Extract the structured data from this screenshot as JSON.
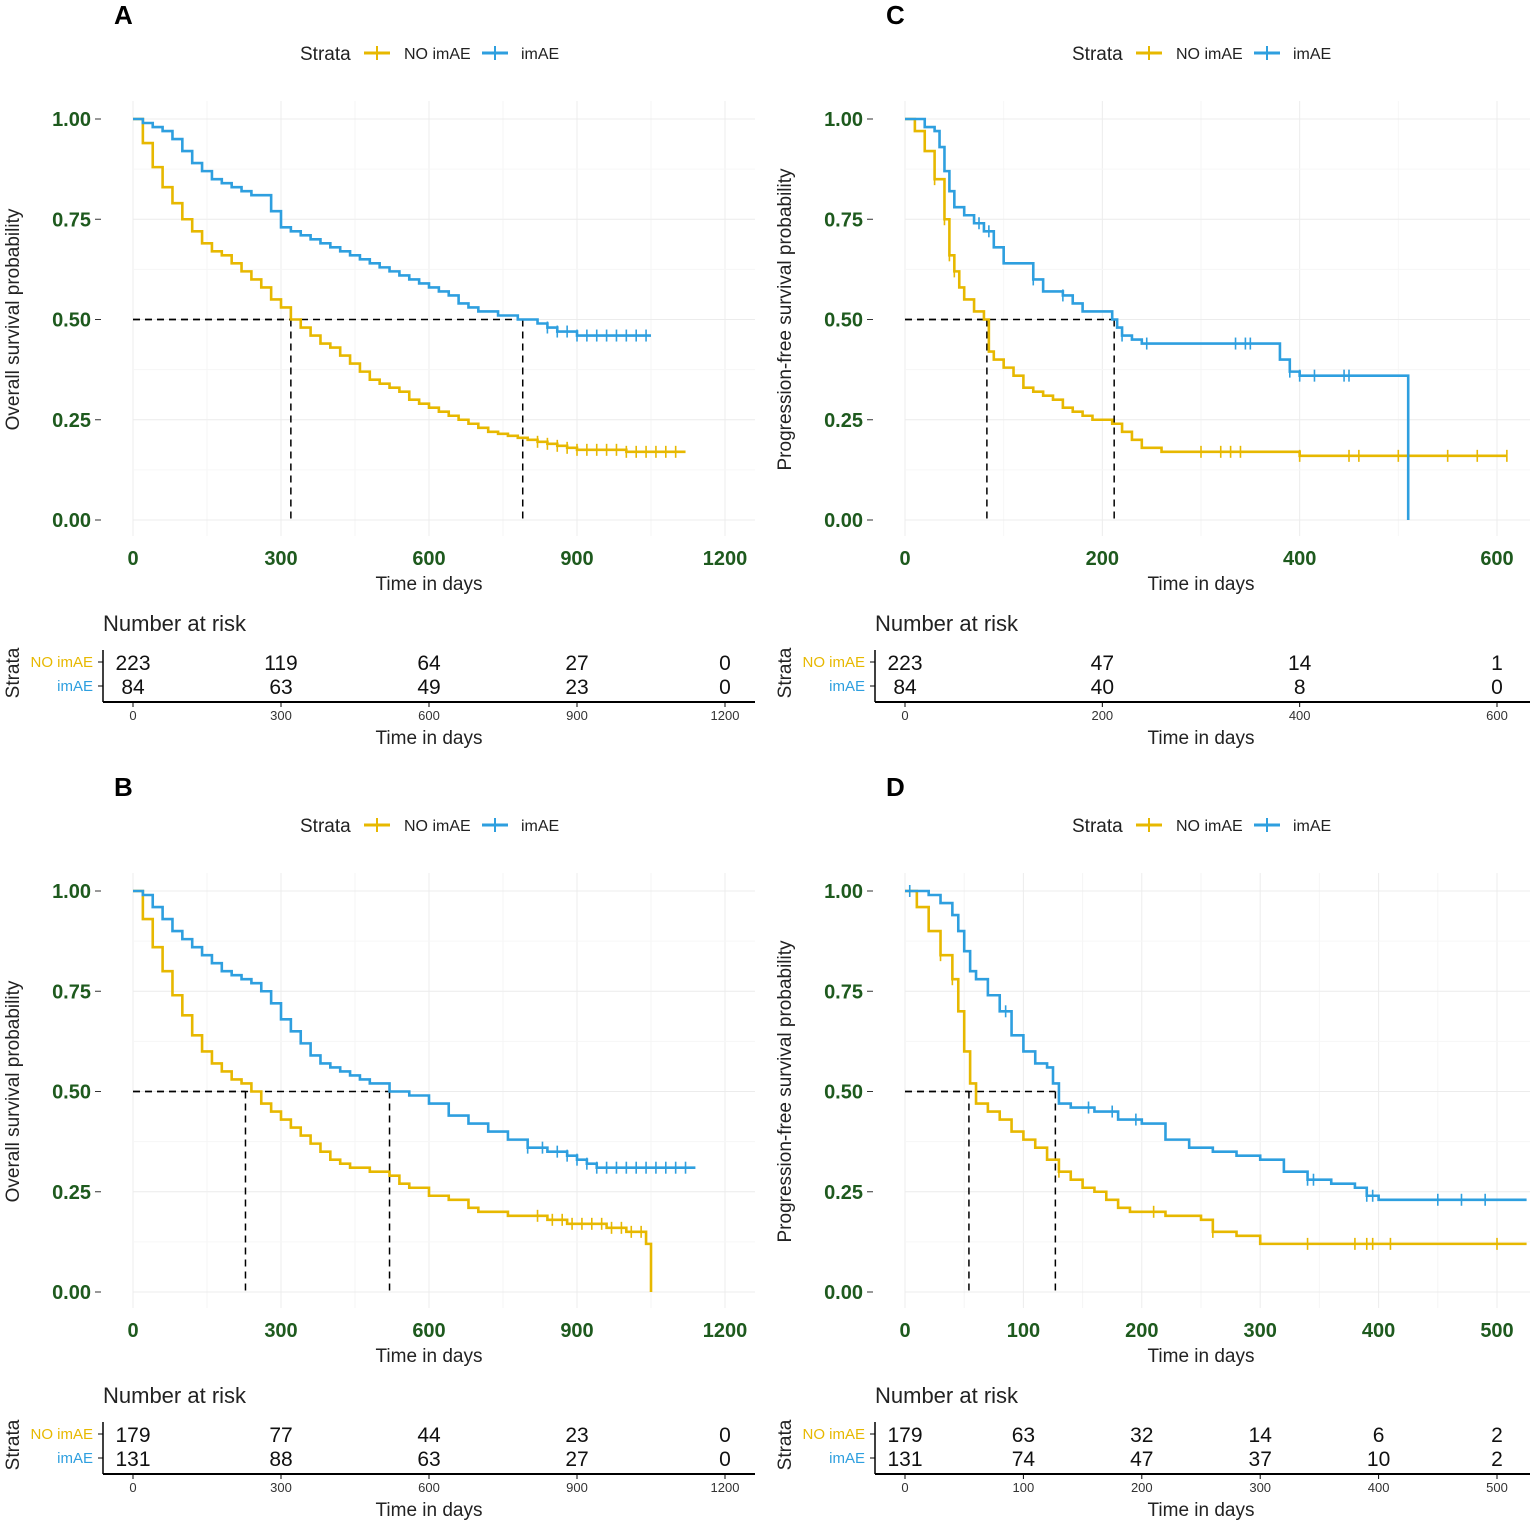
{
  "chart_data": [
    {
      "panel": "A",
      "type": "line",
      "subtype": "kaplan-meier",
      "legend": {
        "title": "Strata",
        "entries": [
          "NO imAE",
          "imAE"
        ]
      },
      "ylabel": "Overall survival probability",
      "xlabel": "Time in days",
      "xlim": [
        0,
        1200
      ],
      "ylim": [
        0,
        1
      ],
      "xticks": [
        "0",
        "300",
        "600",
        "900",
        "1200"
      ],
      "yticks": [
        "0.00",
        "0.25",
        "0.50",
        "0.75",
        "1.00"
      ],
      "median_survival": [
        320,
        790
      ],
      "series": [
        {
          "name": "NO imAE",
          "color": "#E7B800",
          "x": [
            0,
            20,
            40,
            60,
            80,
            100,
            120,
            140,
            160,
            180,
            200,
            220,
            240,
            260,
            280,
            300,
            320,
            340,
            360,
            380,
            400,
            420,
            440,
            460,
            480,
            500,
            520,
            540,
            560,
            580,
            600,
            620,
            640,
            660,
            680,
            700,
            720,
            740,
            760,
            780,
            800,
            820,
            840,
            860,
            880,
            900,
            1000,
            1120
          ],
          "y": [
            1.0,
            0.94,
            0.88,
            0.83,
            0.79,
            0.75,
            0.72,
            0.69,
            0.67,
            0.66,
            0.64,
            0.62,
            0.6,
            0.58,
            0.55,
            0.53,
            0.5,
            0.48,
            0.46,
            0.44,
            0.43,
            0.41,
            0.39,
            0.37,
            0.35,
            0.34,
            0.33,
            0.32,
            0.3,
            0.29,
            0.28,
            0.27,
            0.26,
            0.25,
            0.24,
            0.23,
            0.22,
            0.215,
            0.21,
            0.205,
            0.2,
            0.195,
            0.19,
            0.185,
            0.18,
            0.175,
            0.17,
            0.17
          ],
          "censor_x": [
            820,
            840,
            860,
            880,
            900,
            920,
            940,
            960,
            980,
            1000,
            1020,
            1040,
            1060,
            1080,
            1100
          ]
        },
        {
          "name": "imAE",
          "color": "#2E9FDF",
          "x": [
            0,
            20,
            40,
            60,
            80,
            100,
            120,
            140,
            160,
            180,
            200,
            220,
            240,
            260,
            280,
            300,
            320,
            340,
            360,
            380,
            400,
            420,
            440,
            460,
            480,
            500,
            520,
            540,
            560,
            580,
            600,
            620,
            640,
            660,
            680,
            700,
            720,
            740,
            760,
            780,
            800,
            820,
            840,
            860,
            900,
            1000,
            1050
          ],
          "y": [
            1.0,
            0.99,
            0.98,
            0.97,
            0.95,
            0.92,
            0.89,
            0.87,
            0.85,
            0.84,
            0.83,
            0.82,
            0.81,
            0.81,
            0.77,
            0.73,
            0.72,
            0.71,
            0.7,
            0.69,
            0.68,
            0.67,
            0.66,
            0.65,
            0.64,
            0.63,
            0.62,
            0.61,
            0.6,
            0.59,
            0.58,
            0.57,
            0.56,
            0.54,
            0.53,
            0.52,
            0.52,
            0.51,
            0.51,
            0.5,
            0.5,
            0.49,
            0.48,
            0.47,
            0.46,
            0.46,
            0.46
          ],
          "censor_x": [
            840,
            860,
            880,
            900,
            920,
            940,
            960,
            980,
            1000,
            1020,
            1040
          ]
        }
      ],
      "risk_table": {
        "title": "Number at risk",
        "strata_label": "Strata",
        "times": [
          "0",
          "300",
          "600",
          "900",
          "1200"
        ],
        "rows": [
          {
            "name": "NO imAE",
            "color": "#E7B800",
            "values": [
              "223",
              "119",
              "64",
              "27",
              "0"
            ]
          },
          {
            "name": "imAE",
            "color": "#2E9FDF",
            "values": [
              "84",
              "63",
              "49",
              "23",
              "0"
            ]
          }
        ]
      }
    },
    {
      "panel": "B",
      "type": "line",
      "subtype": "kaplan-meier",
      "legend": {
        "title": "Strata",
        "entries": [
          "NO imAE",
          "imAE"
        ]
      },
      "ylabel": "Overall survival probability",
      "xlabel": "Time in days",
      "xlim": [
        0,
        1200
      ],
      "ylim": [
        0,
        1
      ],
      "xticks": [
        "0",
        "300",
        "600",
        "900",
        "1200"
      ],
      "yticks": [
        "0.00",
        "0.25",
        "0.50",
        "0.75",
        "1.00"
      ],
      "median_survival": [
        228,
        520
      ],
      "series": [
        {
          "name": "NO imAE",
          "color": "#E7B800",
          "x": [
            0,
            20,
            40,
            60,
            80,
            100,
            120,
            140,
            160,
            180,
            200,
            220,
            240,
            260,
            280,
            300,
            320,
            340,
            360,
            380,
            400,
            420,
            440,
            460,
            480,
            500,
            520,
            540,
            560,
            600,
            640,
            680,
            700,
            760,
            800,
            840,
            880,
            920,
            960,
            980,
            1000,
            1040,
            1050,
            1050
          ],
          "y": [
            1.0,
            0.93,
            0.86,
            0.8,
            0.74,
            0.69,
            0.64,
            0.6,
            0.57,
            0.55,
            0.53,
            0.52,
            0.5,
            0.47,
            0.45,
            0.43,
            0.41,
            0.39,
            0.37,
            0.35,
            0.33,
            0.32,
            0.31,
            0.31,
            0.3,
            0.3,
            0.29,
            0.27,
            0.26,
            0.24,
            0.23,
            0.21,
            0.2,
            0.19,
            0.19,
            0.18,
            0.17,
            0.17,
            0.16,
            0.16,
            0.15,
            0.12,
            0.12,
            0.0
          ],
          "censor_x": [
            820,
            850,
            870,
            890,
            910,
            930,
            950,
            970,
            990,
            1010,
            1030
          ]
        },
        {
          "name": "imAE",
          "color": "#2E9FDF",
          "x": [
            0,
            20,
            40,
            60,
            80,
            100,
            120,
            140,
            160,
            180,
            200,
            220,
            240,
            260,
            280,
            300,
            320,
            340,
            360,
            380,
            400,
            420,
            440,
            460,
            480,
            500,
            520,
            560,
            600,
            640,
            680,
            720,
            760,
            800,
            840,
            880,
            900,
            920,
            940,
            980,
            1020,
            1060,
            1140
          ],
          "y": [
            1.0,
            0.99,
            0.96,
            0.93,
            0.9,
            0.88,
            0.86,
            0.84,
            0.82,
            0.8,
            0.79,
            0.78,
            0.77,
            0.75,
            0.72,
            0.68,
            0.65,
            0.62,
            0.59,
            0.57,
            0.56,
            0.55,
            0.54,
            0.53,
            0.52,
            0.52,
            0.5,
            0.49,
            0.47,
            0.44,
            0.42,
            0.4,
            0.38,
            0.36,
            0.35,
            0.34,
            0.33,
            0.32,
            0.31,
            0.31,
            0.31,
            0.31,
            0.31
          ],
          "censor_x": [
            800,
            830,
            860,
            880,
            900,
            920,
            940,
            960,
            980,
            1000,
            1020,
            1040,
            1060,
            1080,
            1100,
            1120
          ]
        }
      ],
      "risk_table": {
        "title": "Number at risk",
        "strata_label": "Strata",
        "times": [
          "0",
          "300",
          "600",
          "900",
          "1200"
        ],
        "rows": [
          {
            "name": "NO imAE",
            "color": "#E7B800",
            "values": [
              "179",
              "77",
              "44",
              "23",
              "0"
            ]
          },
          {
            "name": "imAE",
            "color": "#2E9FDF",
            "values": [
              "131",
              "88",
              "63",
              "27",
              "0"
            ]
          }
        ]
      }
    },
    {
      "panel": "C",
      "type": "line",
      "subtype": "kaplan-meier",
      "legend": {
        "title": "Strata",
        "entries": [
          "NO imAE",
          "imAE"
        ]
      },
      "ylabel": "Progression-free survival probability",
      "xlabel": "Time in days",
      "xlim": [
        0,
        630
      ],
      "ylim": [
        0,
        1
      ],
      "xticks": [
        "0",
        "200",
        "400",
        "600"
      ],
      "yticks": [
        "0.00",
        "0.25",
        "0.50",
        "0.75",
        "1.00"
      ],
      "median_survival": [
        83,
        212
      ],
      "series": [
        {
          "name": "NO imAE",
          "color": "#E7B800",
          "x": [
            0,
            10,
            20,
            30,
            40,
            45,
            50,
            55,
            60,
            70,
            80,
            85,
            90,
            100,
            110,
            120,
            130,
            140,
            150,
            160,
            170,
            180,
            190,
            200,
            210,
            220,
            230,
            240,
            260,
            300,
            400,
            500,
            610
          ],
          "y": [
            1.0,
            0.97,
            0.92,
            0.85,
            0.75,
            0.66,
            0.62,
            0.58,
            0.55,
            0.52,
            0.5,
            0.42,
            0.4,
            0.38,
            0.36,
            0.33,
            0.32,
            0.31,
            0.3,
            0.28,
            0.27,
            0.26,
            0.25,
            0.25,
            0.24,
            0.22,
            0.2,
            0.18,
            0.17,
            0.17,
            0.16,
            0.16,
            0.16
          ],
          "censor_x": [
            30,
            40,
            45,
            50,
            300,
            320,
            330,
            340,
            400,
            450,
            460,
            500,
            550,
            580,
            610
          ]
        },
        {
          "name": "imAE",
          "color": "#2E9FDF",
          "x": [
            0,
            20,
            30,
            35,
            40,
            45,
            50,
            60,
            70,
            80,
            90,
            100,
            120,
            130,
            140,
            160,
            170,
            180,
            200,
            210,
            215,
            220,
            230,
            240,
            260,
            300,
            380,
            390,
            400,
            420,
            480,
            510,
            510
          ],
          "y": [
            1.0,
            0.98,
            0.97,
            0.93,
            0.87,
            0.82,
            0.78,
            0.76,
            0.74,
            0.72,
            0.68,
            0.64,
            0.64,
            0.6,
            0.57,
            0.56,
            0.54,
            0.52,
            0.52,
            0.5,
            0.48,
            0.46,
            0.45,
            0.44,
            0.44,
            0.44,
            0.4,
            0.37,
            0.36,
            0.36,
            0.36,
            0.36,
            0.0
          ],
          "censor_x": [
            75,
            85,
            130,
            160,
            220,
            245,
            335,
            345,
            350,
            390,
            400,
            415,
            445,
            450
          ]
        }
      ],
      "risk_table": {
        "title": "Number at risk",
        "strata_label": "Strata",
        "times": [
          "0",
          "200",
          "400",
          "600"
        ],
        "rows": [
          {
            "name": "NO imAE",
            "color": "#E7B800",
            "values": [
              "223",
              "47",
              "14",
              "1"
            ]
          },
          {
            "name": "imAE",
            "color": "#2E9FDF",
            "values": [
              "84",
              "40",
              "8",
              "0"
            ]
          }
        ]
      }
    },
    {
      "panel": "D",
      "type": "line",
      "subtype": "kaplan-meier",
      "legend": {
        "title": "Strata",
        "entries": [
          "NO imAE",
          "imAE"
        ]
      },
      "ylabel": "Progression-free survival probability",
      "xlabel": "Time in days",
      "xlim": [
        0,
        525
      ],
      "ylim": [
        0,
        1
      ],
      "xticks": [
        "0",
        "100",
        "200",
        "300",
        "400",
        "500"
      ],
      "yticks": [
        "0.00",
        "0.25",
        "0.50",
        "0.75",
        "1.00"
      ],
      "median_survival": [
        54,
        127
      ],
      "series": [
        {
          "name": "NO imAE",
          "color": "#E7B800",
          "x": [
            0,
            10,
            20,
            30,
            40,
            45,
            50,
            55,
            60,
            70,
            80,
            90,
            100,
            110,
            120,
            130,
            140,
            150,
            160,
            170,
            180,
            190,
            200,
            220,
            240,
            250,
            260,
            280,
            300,
            350,
            400,
            450,
            525
          ],
          "y": [
            1.0,
            0.96,
            0.9,
            0.84,
            0.78,
            0.7,
            0.6,
            0.52,
            0.47,
            0.45,
            0.43,
            0.4,
            0.38,
            0.36,
            0.33,
            0.3,
            0.28,
            0.26,
            0.25,
            0.23,
            0.21,
            0.2,
            0.2,
            0.19,
            0.19,
            0.18,
            0.15,
            0.14,
            0.12,
            0.12,
            0.12,
            0.12,
            0.12
          ],
          "censor_x": [
            30,
            40,
            130,
            210,
            260,
            340,
            380,
            390,
            395,
            410,
            500
          ]
        },
        {
          "name": "imAE",
          "color": "#2E9FDF",
          "x": [
            0,
            20,
            30,
            40,
            45,
            50,
            55,
            60,
            70,
            80,
            90,
            100,
            110,
            120,
            125,
            130,
            140,
            160,
            180,
            200,
            220,
            240,
            260,
            280,
            300,
            320,
            340,
            360,
            380,
            390,
            400,
            450,
            525
          ],
          "y": [
            1.0,
            0.99,
            0.97,
            0.94,
            0.9,
            0.85,
            0.8,
            0.78,
            0.74,
            0.7,
            0.64,
            0.6,
            0.57,
            0.56,
            0.52,
            0.47,
            0.46,
            0.45,
            0.43,
            0.42,
            0.38,
            0.36,
            0.35,
            0.34,
            0.33,
            0.3,
            0.28,
            0.27,
            0.26,
            0.24,
            0.23,
            0.23,
            0.23
          ],
          "censor_x": [
            4,
            85,
            155,
            175,
            195,
            340,
            345,
            390,
            395,
            450,
            470,
            490
          ]
        }
      ],
      "risk_table": {
        "title": "Number at risk",
        "strata_label": "Strata",
        "times": [
          "0",
          "100",
          "200",
          "300",
          "400",
          "500"
        ],
        "rows": [
          {
            "name": "NO imAE",
            "color": "#E7B800",
            "values": [
              "179",
              "63",
              "32",
              "14",
              "6",
              "2"
            ]
          },
          {
            "name": "imAE",
            "color": "#2E9FDF",
            "values": [
              "131",
              "74",
              "47",
              "37",
              "10",
              "2"
            ]
          }
        ]
      }
    }
  ]
}
